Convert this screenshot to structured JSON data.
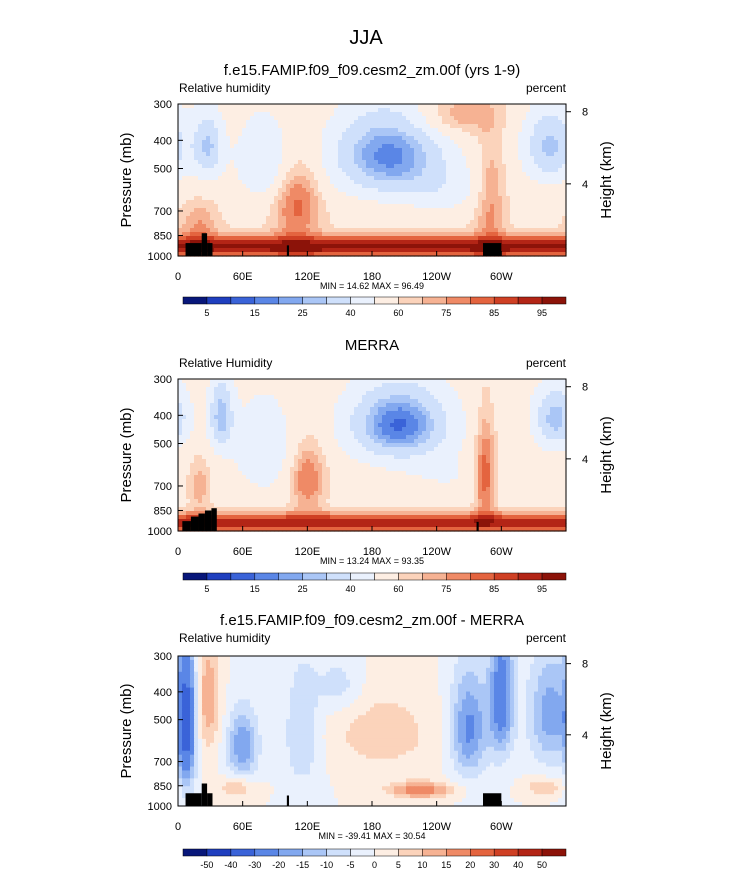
{
  "page_title": "JJA",
  "colors": {
    "rh_scale": [
      "#08177a",
      "#1f3fbf",
      "#3a63d8",
      "#5a86e6",
      "#82a8ef",
      "#aac6f6",
      "#cfe0fb",
      "#eaf1fd",
      "#fdeee3",
      "#fbd3bb",
      "#f6b293",
      "#ef8a66",
      "#e4643f",
      "#cf4024",
      "#b32516",
      "#8c1309"
    ],
    "diff_scale": [
      "#08177a",
      "#1f3fbf",
      "#3a63d8",
      "#5a86e6",
      "#82a8ef",
      "#aac6f6",
      "#cfe0fb",
      "#eaf1fd",
      "#fdeee3",
      "#fbd3bb",
      "#f6b293",
      "#ef8a66",
      "#e4643f",
      "#cf4024",
      "#b32516",
      "#8c1309"
    ],
    "topography": "#000000"
  },
  "chart_data": [
    {
      "type": "heatmap",
      "title": "f.e15.FAMIP.f09_f09.cesm2_zm.00f (yrs 1-9)",
      "left_label": "Relative humidity",
      "right_label": "percent",
      "ylabel": "Pressure (mb)",
      "ylabel_right": "Height (km)",
      "x_ticks": [
        "0",
        "60E",
        "120E",
        "180",
        "120W",
        "60W"
      ],
      "x_tick_values": [
        0,
        60,
        120,
        180,
        240,
        300
      ],
      "xlim": [
        0,
        360
      ],
      "y_ticks": [
        "300",
        "400",
        "500",
        "700",
        "850",
        "1000"
      ],
      "y_tick_values": [
        300,
        400,
        500,
        700,
        850,
        1000
      ],
      "ylim": [
        1000,
        300
      ],
      "y_scale": "log",
      "right_ticks": [
        "8",
        "4"
      ],
      "right_tick_values": [
        8,
        4
      ],
      "stats": "MIN = 14.62  MAX = 96.49",
      "levels": [
        "5",
        "15",
        "25",
        "40",
        "60",
        "75",
        "85",
        "95"
      ],
      "scale": "rh_scale",
      "min": 14.62,
      "max": 96.49
    },
    {
      "type": "heatmap",
      "title": "MERRA",
      "left_label": "Relative Humidity",
      "right_label": "percent",
      "ylabel": "Pressure (mb)",
      "ylabel_right": "Height (km)",
      "x_ticks": [
        "0",
        "60E",
        "120E",
        "180",
        "120W",
        "60W"
      ],
      "x_tick_values": [
        0,
        60,
        120,
        180,
        240,
        300
      ],
      "xlim": [
        0,
        360
      ],
      "y_ticks": [
        "300",
        "400",
        "500",
        "700",
        "850",
        "1000"
      ],
      "y_tick_values": [
        300,
        400,
        500,
        700,
        850,
        1000
      ],
      "ylim": [
        1000,
        300
      ],
      "y_scale": "log",
      "right_ticks": [
        "8",
        "4"
      ],
      "right_tick_values": [
        8,
        4
      ],
      "stats": "MIN = 13.24  MAX = 93.35",
      "levels": [
        "5",
        "15",
        "25",
        "40",
        "60",
        "75",
        "85",
        "95"
      ],
      "scale": "rh_scale",
      "min": 13.24,
      "max": 93.35
    },
    {
      "type": "heatmap",
      "title": "f.e15.FAMIP.f09_f09.cesm2_zm.00f - MERRA",
      "left_label": "Relative humidity",
      "right_label": "percent",
      "ylabel": "Pressure (mb)",
      "ylabel_right": "Height (km)",
      "x_ticks": [
        "0",
        "60E",
        "120E",
        "180",
        "120W",
        "60W"
      ],
      "x_tick_values": [
        0,
        60,
        120,
        180,
        240,
        300
      ],
      "xlim": [
        0,
        360
      ],
      "y_ticks": [
        "300",
        "400",
        "500",
        "700",
        "850",
        "1000"
      ],
      "y_tick_values": [
        300,
        400,
        500,
        700,
        850,
        1000
      ],
      "ylim": [
        1000,
        300
      ],
      "y_scale": "log",
      "right_ticks": [
        "8",
        "4"
      ],
      "right_tick_values": [
        8,
        4
      ],
      "stats": "MIN = -39.41  MAX = 30.54",
      "levels": [
        "-50",
        "-40",
        "-30",
        "-20",
        "-15",
        "-10",
        "-5",
        "0",
        "5",
        "10",
        "15",
        "20",
        "30",
        "40",
        "50"
      ],
      "scale": "diff_scale",
      "min": -39.41,
      "max": 30.54
    }
  ]
}
